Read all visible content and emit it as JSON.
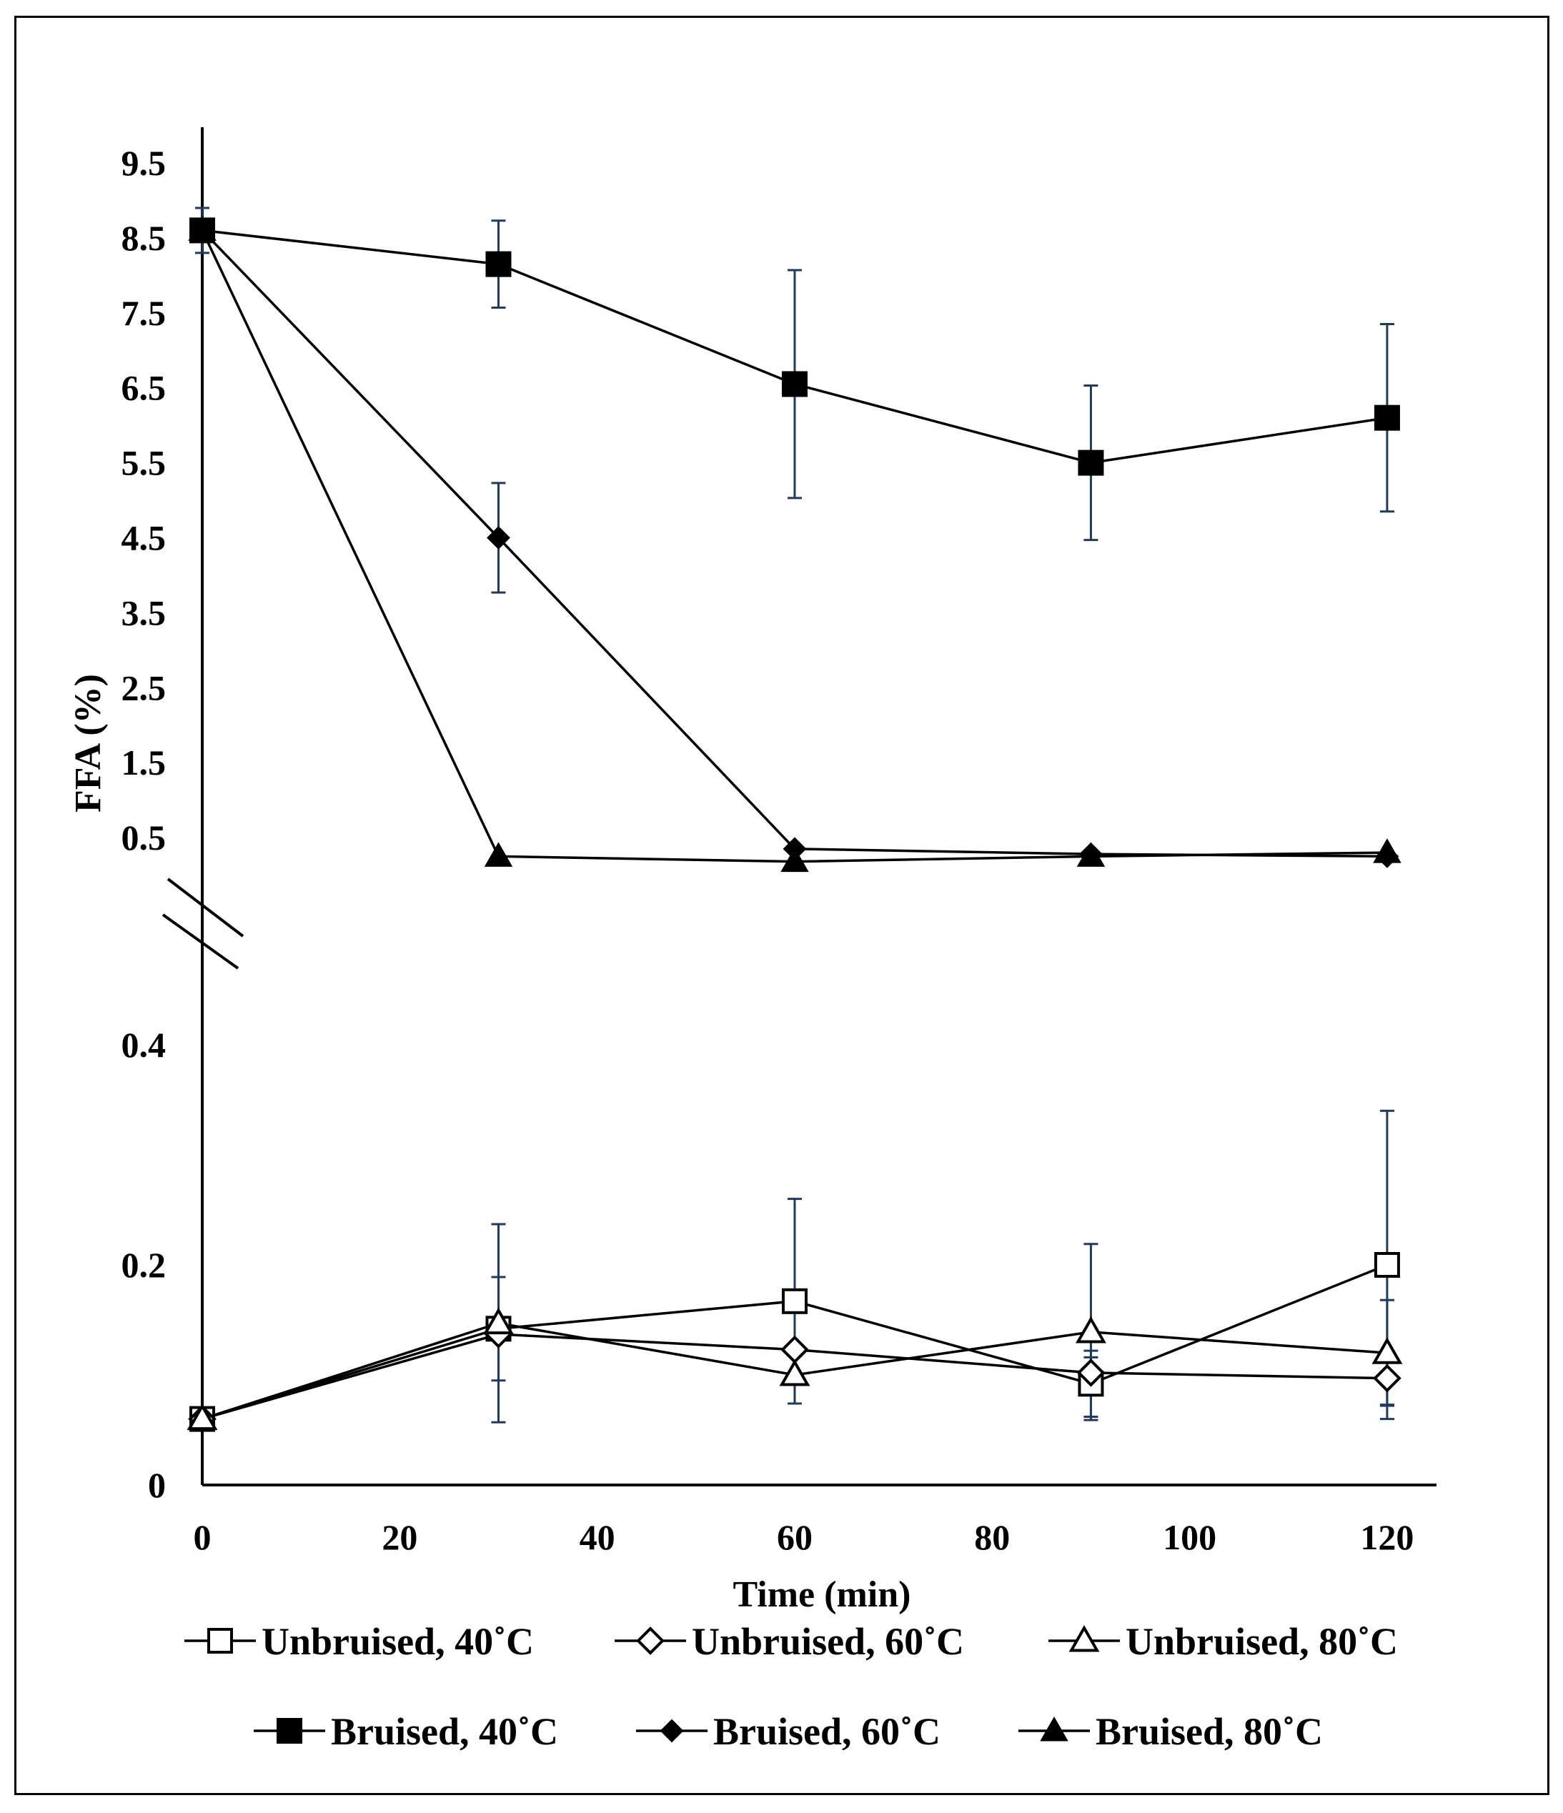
{
  "chart_data": {
    "type": "line",
    "title": "",
    "xlabel": "Time (min)",
    "ylabel": "FFA (%)",
    "x_ticks": [
      "0",
      "20",
      "40",
      "60",
      "80",
      "100",
      "120"
    ],
    "xlim": [
      0,
      125
    ],
    "broken_y_axis": true,
    "upper_panel": {
      "ylim": [
        0.2,
        9.9
      ],
      "y_ticks": [
        "9.5",
        "8.5",
        "7.5",
        "6.5",
        "5.5",
        "4.5",
        "3.5",
        "2.5",
        "1.5",
        "0.5"
      ],
      "y_tick_values": [
        9.5,
        8.5,
        7.5,
        6.5,
        5.5,
        4.5,
        3.5,
        2.5,
        1.5,
        0.5
      ]
    },
    "lower_panel": {
      "ylim": [
        0,
        0.43
      ],
      "y_ticks": [
        "0.4",
        "0.2",
        "0"
      ],
      "y_tick_values": [
        0.4,
        0.2,
        0
      ]
    },
    "series": [
      {
        "name": "Unbruised, 40˚C",
        "panel": "lower",
        "marker": "square",
        "filled": false,
        "x": [
          0,
          30,
          60,
          90,
          120
        ],
        "values": [
          0.06,
          0.142,
          0.167,
          0.092,
          0.2
        ],
        "errors": [
          0,
          0.047,
          0.093,
          0.03,
          0.14
        ]
      },
      {
        "name": "Unbruised, 60˚C",
        "panel": "lower",
        "marker": "diamond",
        "filled": false,
        "x": [
          0,
          30,
          60,
          90,
          120
        ],
        "values": [
          0.06,
          0.137,
          0.123,
          0.102,
          0.097
        ],
        "errors": [
          0,
          0,
          0,
          0.014,
          0.024
        ]
      },
      {
        "name": "Unbruised, 80˚C",
        "panel": "lower",
        "marker": "triangle",
        "filled": false,
        "x": [
          0,
          30,
          60,
          90,
          120
        ],
        "values": [
          0.06,
          0.147,
          0.1,
          0.139,
          0.12
        ],
        "errors": [
          0,
          0.09,
          0.026,
          0.08,
          0.048
        ]
      },
      {
        "name": "Bruised, 40˚C",
        "panel": "upper",
        "marker": "square",
        "filled": true,
        "x": [
          0,
          30,
          60,
          90,
          120
        ],
        "values": [
          8.6,
          8.15,
          6.55,
          5.5,
          6.1
        ],
        "errors": [
          0.3,
          0.58,
          1.52,
          1.03,
          1.25
        ]
      },
      {
        "name": "Bruised, 60˚C",
        "panel": "upper",
        "marker": "diamond",
        "filled": true,
        "x": [
          0,
          30,
          60,
          90,
          120
        ],
        "values": [
          8.6,
          4.5,
          0.35,
          0.28,
          0.25
        ],
        "errors": [
          0,
          0.73,
          0,
          0,
          0
        ]
      },
      {
        "name": "Bruised, 80˚C",
        "panel": "upper",
        "marker": "triangle",
        "filled": true,
        "x": [
          0,
          30,
          60,
          90,
          120
        ],
        "values": [
          8.6,
          0.25,
          0.18,
          0.25,
          0.3
        ],
        "errors": [
          0,
          0,
          0,
          0,
          0
        ]
      }
    ],
    "legend": {
      "position": "bottom",
      "items": [
        {
          "label": "Unbruised, 40˚C",
          "marker": "square",
          "filled": false
        },
        {
          "label": "Unbruised, 60˚C",
          "marker": "diamond",
          "filled": false
        },
        {
          "label": "Unbruised, 80˚C",
          "marker": "triangle",
          "filled": false
        },
        {
          "label": "Bruised, 40˚C",
          "marker": "square",
          "filled": true
        },
        {
          "label": "Bruised, 60˚C",
          "marker": "diamond",
          "filled": true
        },
        {
          "label": "Bruised, 80˚C",
          "marker": "triangle",
          "filled": true
        }
      ]
    },
    "colors": {
      "line": "#000000",
      "error_bar": "#1f3a5f",
      "marker_fill": "#ffffff"
    }
  }
}
